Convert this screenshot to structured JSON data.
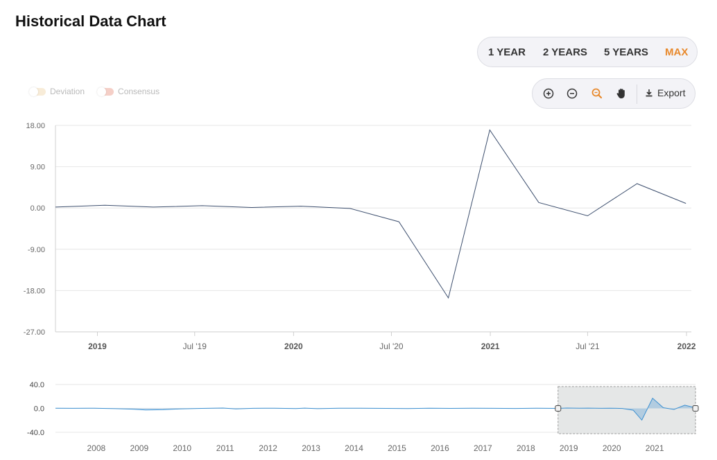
{
  "page": {
    "title": "Historical Data Chart"
  },
  "range_buttons": [
    {
      "label": "1 YEAR",
      "active": false
    },
    {
      "label": "2 YEARS",
      "active": false
    },
    {
      "label": "5 YEARS",
      "active": false
    },
    {
      "label": "MAX",
      "active": true
    }
  ],
  "legend": [
    {
      "label": "Deviation",
      "color": "#f8e9cf",
      "enabled": false
    },
    {
      "label": "Consensus",
      "color": "#f5c9c0",
      "enabled": false
    }
  ],
  "toolbar": {
    "tools": [
      {
        "icon": "zoom-in-icon"
      },
      {
        "icon": "zoom-out-icon"
      },
      {
        "icon": "magnifier-icon",
        "color": "#e8892c"
      },
      {
        "icon": "hand-pan-icon"
      }
    ],
    "export_label": "Export"
  },
  "chart_data": [
    {
      "type": "line",
      "title": "",
      "ylim": [
        -27,
        18
      ],
      "y_ticks": [
        "18.00",
        "9.00",
        "0.00",
        "-9.00",
        "-18.00",
        "-27.00"
      ],
      "x_ticks": [
        {
          "label": "2019",
          "date": "2019-01-01",
          "bold": true
        },
        {
          "label": "Jul '19",
          "date": "2019-07-01",
          "bold": false
        },
        {
          "label": "2020",
          "date": "2020-01-01",
          "bold": true
        },
        {
          "label": "Jul '20",
          "date": "2020-07-01",
          "bold": false
        },
        {
          "label": "2021",
          "date": "2021-01-01",
          "bold": true
        },
        {
          "label": "Jul '21",
          "date": "2021-07-01",
          "bold": false
        },
        {
          "label": "2022",
          "date": "2022-01-01",
          "bold": true
        }
      ],
      "x_range": [
        "2018-10-15",
        "2022-01-10"
      ],
      "grid": true,
      "series": [
        {
          "color": "#3d4f6e",
          "points": [
            {
              "x": "2018-10-15",
              "y": 0.2
            },
            {
              "x": "2019-01-15",
              "y": 0.6
            },
            {
              "x": "2019-04-15",
              "y": 0.2
            },
            {
              "x": "2019-07-15",
              "y": 0.5
            },
            {
              "x": "2019-10-15",
              "y": 0.1
            },
            {
              "x": "2020-01-15",
              "y": 0.4
            },
            {
              "x": "2020-04-15",
              "y": -0.1
            },
            {
              "x": "2020-07-15",
              "y": -3.0
            },
            {
              "x": "2020-10-15",
              "y": -19.6
            },
            {
              "x": "2020-12-31",
              "y": 17.0
            },
            {
              "x": "2021-04-01",
              "y": 1.2
            },
            {
              "x": "2021-07-01",
              "y": -1.7
            },
            {
              "x": "2021-10-01",
              "y": 5.3
            },
            {
              "x": "2021-12-31",
              "y": 1.0
            }
          ]
        }
      ]
    },
    {
      "type": "area",
      "title": "navigator",
      "ylim": [
        -40,
        40
      ],
      "y_ticks": [
        "40.0",
        "0.0",
        "-40.0"
      ],
      "x_ticks": [
        "2008",
        "2009",
        "2010",
        "2011",
        "2012",
        "2013",
        "2014",
        "2015",
        "2016",
        "2017",
        "2018",
        "2019",
        "2020",
        "2021"
      ],
      "x_range": [
        2007.1,
        2022.0
      ],
      "selection": [
        2018.8,
        2022.0
      ],
      "series": [
        {
          "color": "#3a8fd1",
          "points": [
            [
              2007.1,
              0.2
            ],
            [
              2007.5,
              0.1
            ],
            [
              2008.0,
              0.3
            ],
            [
              2008.5,
              -0.5
            ],
            [
              2008.9,
              -1.3
            ],
            [
              2009.2,
              -2.5
            ],
            [
              2009.6,
              -2.2
            ],
            [
              2010.0,
              -0.8
            ],
            [
              2010.5,
              0.0
            ],
            [
              2011.0,
              0.6
            ],
            [
              2011.3,
              -0.8
            ],
            [
              2011.7,
              0.1
            ],
            [
              2012.2,
              0.3
            ],
            [
              2012.7,
              -0.4
            ],
            [
              2012.9,
              0.5
            ],
            [
              2013.2,
              -0.5
            ],
            [
              2013.7,
              0.2
            ],
            [
              2014.2,
              0.3
            ],
            [
              2014.8,
              0.0
            ],
            [
              2015.3,
              -0.2
            ],
            [
              2015.8,
              0.3
            ],
            [
              2016.3,
              0.0
            ],
            [
              2016.8,
              0.4
            ],
            [
              2017.3,
              0.1
            ],
            [
              2017.8,
              -0.1
            ],
            [
              2018.3,
              0.2
            ],
            [
              2018.8,
              0.0
            ],
            [
              2019.0,
              0.6
            ],
            [
              2019.3,
              0.2
            ],
            [
              2019.5,
              0.5
            ],
            [
              2019.8,
              0.1
            ],
            [
              2020.0,
              0.4
            ],
            [
              2020.3,
              -0.1
            ],
            [
              2020.55,
              -3.0
            ],
            [
              2020.75,
              -19.6
            ],
            [
              2021.0,
              17.0
            ],
            [
              2021.25,
              1.2
            ],
            [
              2021.5,
              -1.7
            ],
            [
              2021.75,
              5.3
            ],
            [
              2022.0,
              1.0
            ]
          ]
        }
      ]
    }
  ]
}
